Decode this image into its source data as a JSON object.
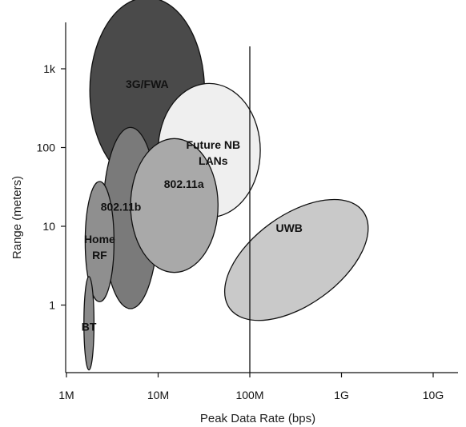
{
  "chart_data": {
    "type": "bubble",
    "xlabel": "Peak Data Rate (bps)",
    "ylabel": "Range (meters)",
    "x_scale": "log",
    "y_scale": "log",
    "xlim": [
      1000000,
      10000000000
    ],
    "ylim": [
      0.1,
      2000
    ],
    "x_ticks": [
      {
        "value": 1000000,
        "label": "1M"
      },
      {
        "value": 10000000,
        "label": "10M"
      },
      {
        "value": 100000000,
        "label": "100M"
      },
      {
        "value": 1000000000,
        "label": "1G"
      },
      {
        "value": 10000000000,
        "label": "10G"
      }
    ],
    "y_ticks": [
      {
        "value": 1,
        "label": "1"
      },
      {
        "value": 10,
        "label": "10"
      },
      {
        "value": 100,
        "label": "100"
      },
      {
        "value": 1000,
        "label": "1k"
      }
    ],
    "reference_lines": [
      {
        "axis": "x",
        "value": 100000000
      }
    ],
    "regions": [
      {
        "label": "3G/FWA",
        "x_range": [
          1800000,
          32000000
        ],
        "y_range": [
          35,
          8000
        ],
        "color": "#4a4a4a"
      },
      {
        "label": "802.11b",
        "x_range": [
          2500000,
          10000000
        ],
        "y_range": [
          0.9,
          180
        ],
        "color": "#7a7a7a"
      },
      {
        "label": "Future NB LANs",
        "x_range": [
          10000000,
          130000000
        ],
        "y_range": [
          13,
          650
        ],
        "color": "#efefef"
      },
      {
        "label": "802.11a",
        "x_range": [
          5000000,
          45000000
        ],
        "y_range": [
          2.6,
          130
        ],
        "color": "#a9a9a9"
      },
      {
        "label": "UWB",
        "x_range": [
          26000000,
          4000000000
        ],
        "y_range": [
          0.25,
          56
        ],
        "color": "#c9c9c9"
      },
      {
        "label": "Home RF",
        "x_range": [
          1600000,
          3300000
        ],
        "y_range": [
          1.1,
          37
        ],
        "color": "#8f8f8f"
      },
      {
        "label": "BT",
        "x_range": [
          1550000,
          2000000
        ],
        "y_range": [
          0.15,
          2.3
        ],
        "color": "#8a8a8a"
      }
    ]
  }
}
